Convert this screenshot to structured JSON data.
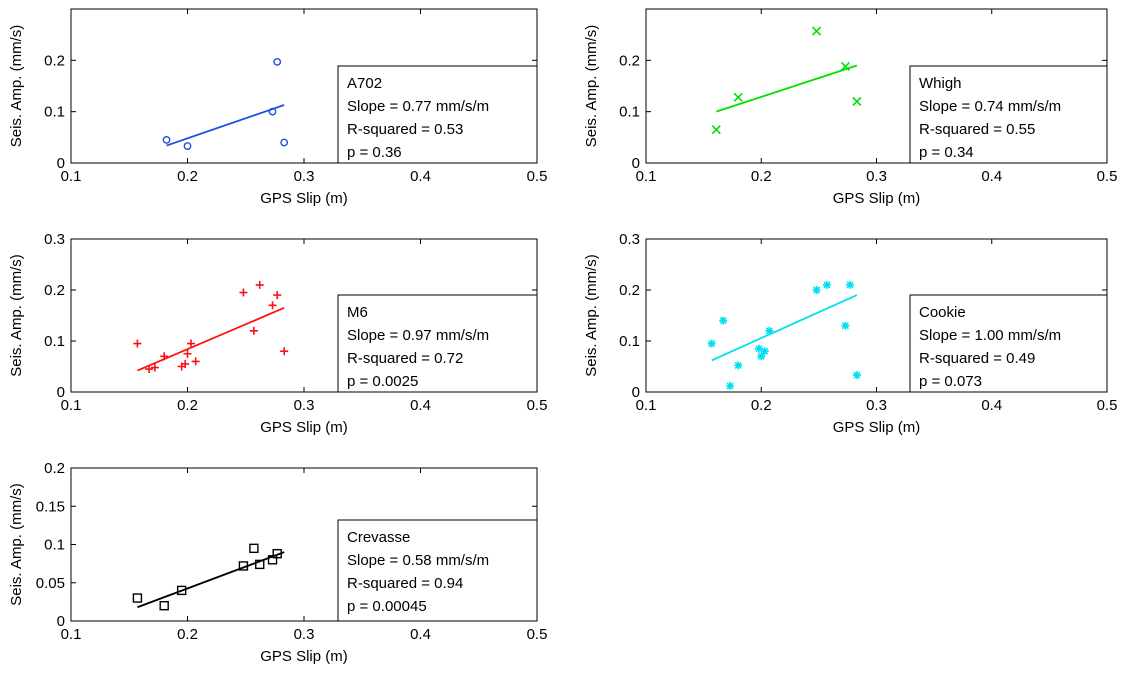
{
  "chart_data": [
    {
      "type": "scatter",
      "xlabel": "GPS Slip (m)",
      "ylabel": "Seis. Amp. (mm/s)",
      "xlim": [
        0.1,
        0.5
      ],
      "ylim": [
        0,
        0.3
      ],
      "xticks": [
        "0.1",
        "0.2",
        "0.3",
        "0.4",
        "0.5"
      ],
      "yticks": [
        "0",
        "0.1",
        "0.2"
      ],
      "grid": false,
      "color": "#1f50e0",
      "marker": "circle",
      "series": [
        {
          "x": [
            0.182,
            0.2,
            0.273,
            0.277,
            0.283
          ],
          "y": [
            0.045,
            0.033,
            0.1,
            0.197,
            0.04
          ]
        }
      ],
      "fit_line": {
        "x": [
          0.182,
          0.283
        ],
        "y": [
          0.034,
          0.113
        ]
      },
      "legend": {
        "position": "right",
        "lines": [
          "A702",
          "Slope = 0.77 mm/s/m",
          "R-squared = 0.53",
          "p = 0.36"
        ]
      }
    },
    {
      "type": "scatter",
      "xlabel": "GPS Slip (m)",
      "ylabel": "Seis. Amp. (mm/s)",
      "xlim": [
        0.1,
        0.5
      ],
      "ylim": [
        0,
        0.3
      ],
      "xticks": [
        "0.1",
        "0.2",
        "0.3",
        "0.4",
        "0.5"
      ],
      "yticks": [
        "0",
        "0.1",
        "0.2"
      ],
      "grid": false,
      "color": "#00e000",
      "marker": "x",
      "series": [
        {
          "x": [
            0.161,
            0.18,
            0.248,
            0.273,
            0.283
          ],
          "y": [
            0.065,
            0.128,
            0.257,
            0.188,
            0.12
          ]
        }
      ],
      "fit_line": {
        "x": [
          0.161,
          0.283
        ],
        "y": [
          0.1,
          0.19
        ]
      },
      "legend": {
        "position": "right",
        "lines": [
          "Whigh",
          "Slope = 0.74 mm/s/m",
          "R-squared = 0.55",
          "p = 0.34"
        ]
      }
    },
    {
      "type": "scatter",
      "xlabel": "GPS Slip (m)",
      "ylabel": "Seis. Amp. (mm/s)",
      "xlim": [
        0.1,
        0.5
      ],
      "ylim": [
        0,
        0.3
      ],
      "xticks": [
        "0.1",
        "0.2",
        "0.3",
        "0.4",
        "0.5"
      ],
      "yticks": [
        "0",
        "0.1",
        "0.2",
        "0.3"
      ],
      "grid": false,
      "color": "#ff1010",
      "marker": "plus",
      "series": [
        {
          "x": [
            0.157,
            0.167,
            0.172,
            0.18,
            0.195,
            0.198,
            0.2,
            0.203,
            0.207,
            0.248,
            0.257,
            0.262,
            0.273,
            0.277,
            0.283
          ],
          "y": [
            0.095,
            0.045,
            0.048,
            0.07,
            0.05,
            0.055,
            0.075,
            0.095,
            0.06,
            0.195,
            0.12,
            0.21,
            0.17,
            0.19,
            0.08
          ]
        }
      ],
      "fit_line": {
        "x": [
          0.157,
          0.283
        ],
        "y": [
          0.042,
          0.165
        ]
      },
      "legend": {
        "position": "right",
        "lines": [
          "M6",
          "Slope = 0.97 mm/s/m",
          "R-squared = 0.72",
          "p = 0.0025"
        ]
      }
    },
    {
      "type": "scatter",
      "xlabel": "GPS Slip (m)",
      "ylabel": "Seis. Amp. (mm/s)",
      "xlim": [
        0.1,
        0.5
      ],
      "ylim": [
        0,
        0.3
      ],
      "xticks": [
        "0.1",
        "0.2",
        "0.3",
        "0.4",
        "0.5"
      ],
      "yticks": [
        "0",
        "0.1",
        "0.2",
        "0.3"
      ],
      "grid": false,
      "color": "#00e0f0",
      "marker": "star",
      "series": [
        {
          "x": [
            0.157,
            0.167,
            0.173,
            0.18,
            0.198,
            0.2,
            0.203,
            0.207,
            0.248,
            0.257,
            0.273,
            0.277,
            0.283
          ],
          "y": [
            0.095,
            0.14,
            0.012,
            0.052,
            0.085,
            0.07,
            0.08,
            0.12,
            0.2,
            0.21,
            0.13,
            0.21,
            0.033
          ]
        }
      ],
      "fit_line": {
        "x": [
          0.157,
          0.283
        ],
        "y": [
          0.062,
          0.19
        ]
      },
      "legend": {
        "position": "right",
        "lines": [
          "Cookie",
          "Slope = 1.00 mm/s/m",
          "R-squared = 0.49",
          "p = 0.073"
        ]
      }
    },
    {
      "type": "scatter",
      "xlabel": "GPS Slip (m)",
      "ylabel": "Seis. Amp. (mm/s)",
      "xlim": [
        0.1,
        0.5
      ],
      "ylim": [
        0,
        0.2
      ],
      "xticks": [
        "0.1",
        "0.2",
        "0.3",
        "0.4",
        "0.5"
      ],
      "yticks": [
        "0",
        "0.05",
        "0.1",
        "0.15",
        "0.2"
      ],
      "grid": false,
      "color": "#000000",
      "marker": "square",
      "series": [
        {
          "x": [
            0.157,
            0.18,
            0.195,
            0.248,
            0.257,
            0.262,
            0.273,
            0.277
          ],
          "y": [
            0.03,
            0.02,
            0.04,
            0.072,
            0.095,
            0.074,
            0.08,
            0.088
          ]
        }
      ],
      "fit_line": {
        "x": [
          0.157,
          0.283
        ],
        "y": [
          0.018,
          0.09
        ]
      },
      "legend": {
        "position": "right",
        "lines": [
          "Crevasse",
          "Slope = 0.58 mm/s/m",
          "R-squared = 0.94",
          "p = 0.00045"
        ]
      }
    }
  ]
}
